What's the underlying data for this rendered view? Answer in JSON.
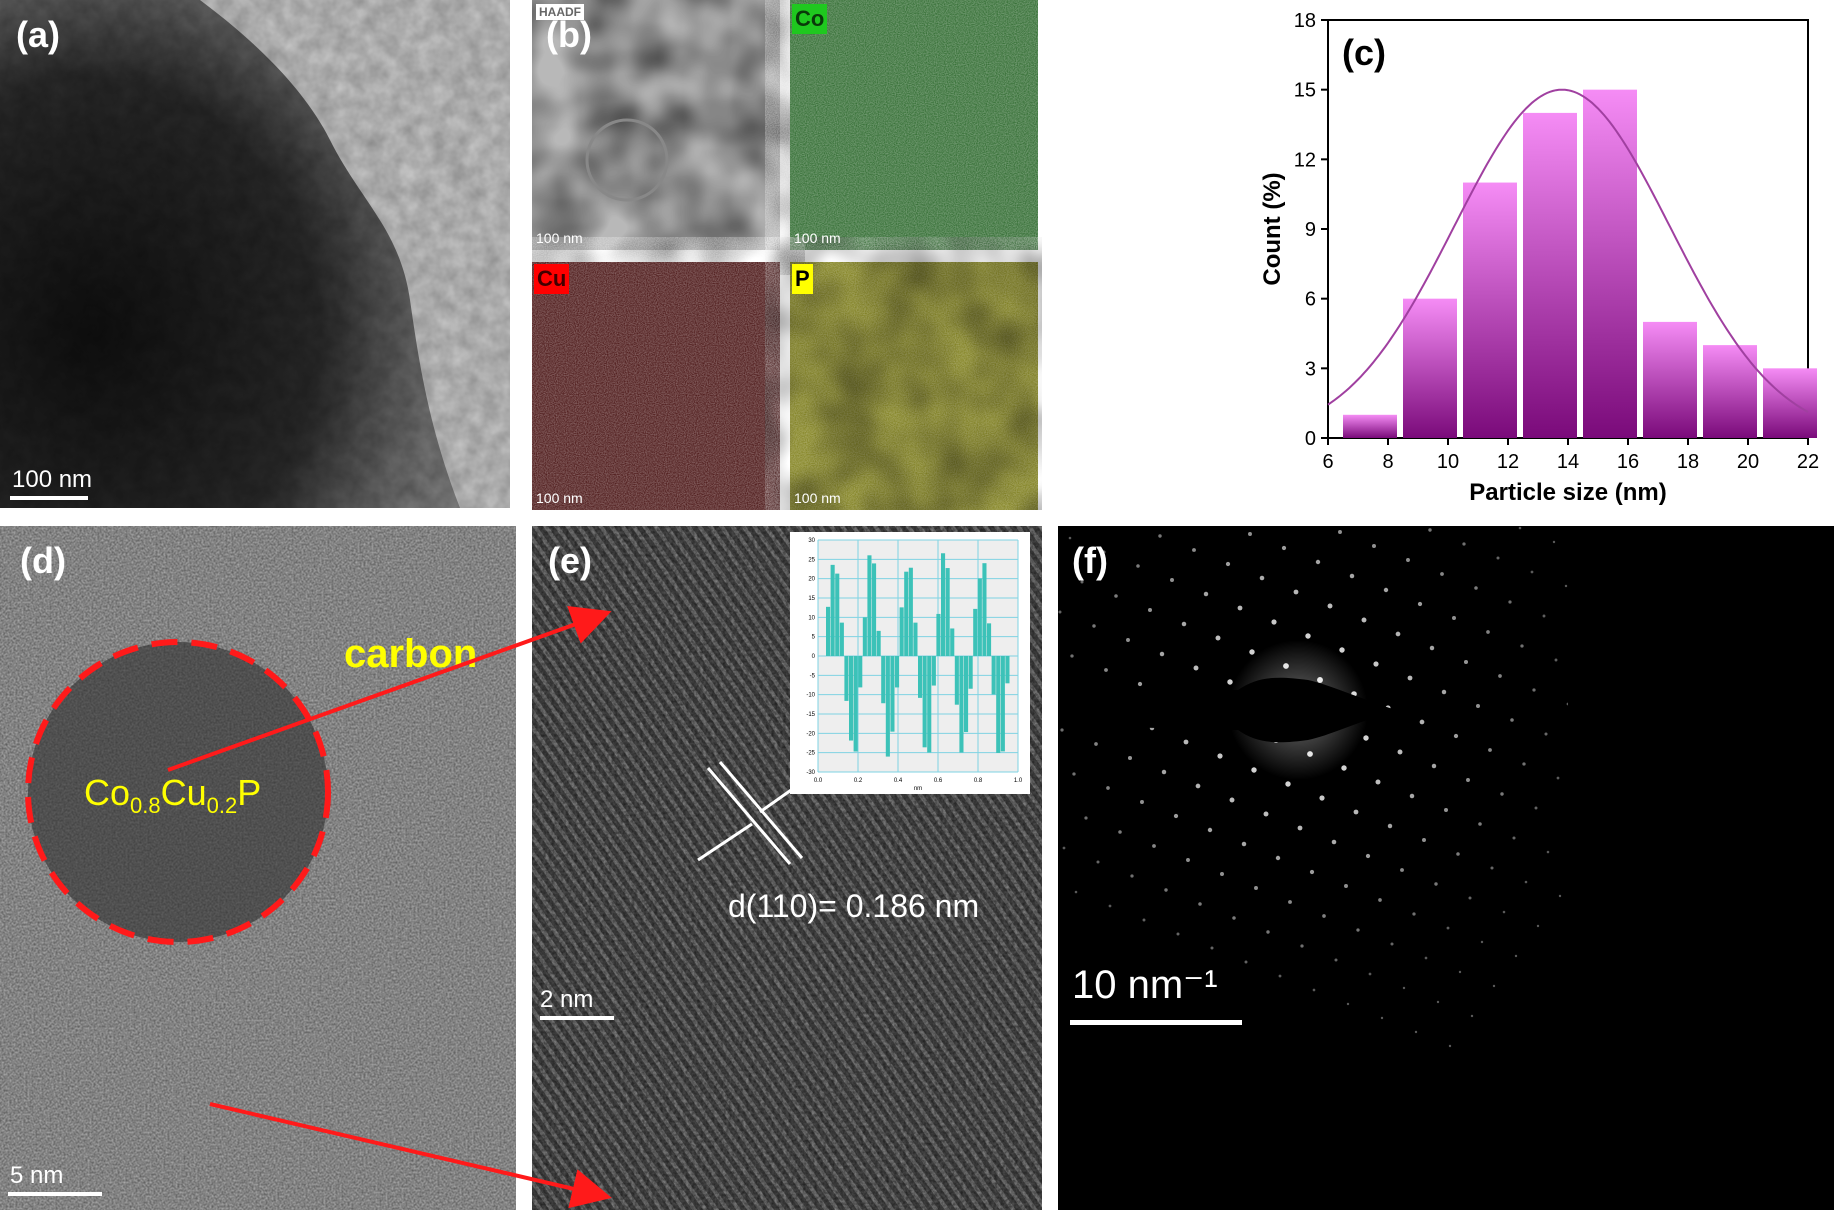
{
  "panels": {
    "a": {
      "label": "(a)",
      "scalebar": "100 nm"
    },
    "b": {
      "label": "(b)",
      "scalebar": "100 nm",
      "maps": [
        {
          "tag": "HAADF",
          "scalebar": "100 nm",
          "color": "#bdbdbd"
        },
        {
          "tag": "Co",
          "scalebar": "100 nm",
          "color": "#2ca02c"
        },
        {
          "tag": "Cu",
          "scalebar": "100 nm",
          "color": "#d40000"
        },
        {
          "tag": "P",
          "scalebar": "100 nm",
          "color": "#e6e600"
        }
      ]
    },
    "c": {
      "label": "(c)"
    },
    "d": {
      "label": "(d)",
      "scalebar": "5 nm",
      "annotation_carbon": "carbon",
      "formula": {
        "co": "Co",
        "co_sub": "0.8",
        "cu": "Cu",
        "cu_sub": "0.2",
        "p": "P"
      }
    },
    "e": {
      "label": "(e)",
      "scalebar": "2 nm",
      "spacing_label": "d(110)= 0.186 nm",
      "inset": {
        "yticks": [
          "30",
          "25",
          "20",
          "15",
          "10",
          "5",
          "0",
          "-5",
          "-10",
          "-15",
          "-20",
          "-25",
          "-30"
        ],
        "xticks": [
          "0.0",
          "0.2",
          "0.4",
          "0.6",
          "0.8",
          "1.0"
        ],
        "xunit": "nm",
        "bar_color": "#3cc2b8",
        "grid_color": "#7fd3e3"
      }
    },
    "f": {
      "label": "(f)",
      "scalebar": "10 nm⁻¹"
    }
  },
  "chart_data": {
    "type": "bar",
    "bins_left": [
      6.5,
      8.5,
      10.5,
      12.5,
      14.5,
      16.5,
      18.5,
      20.5
    ],
    "bin_width": 1.8,
    "values": [
      1,
      6,
      11,
      14,
      15,
      5,
      4,
      3
    ],
    "fit": {
      "type": "gaussian",
      "mean": 13.8,
      "sigma": 3.6,
      "peak": 15,
      "color": "#a040a0"
    },
    "bar_color_top": "#f58cf5",
    "bar_color_bottom": "#7a0a7a",
    "xlabel": "Particle size (nm)",
    "ylabel": "Count (%)",
    "xlim": [
      6,
      22
    ],
    "ylim": [
      0,
      18
    ],
    "xticks": [
      6,
      8,
      10,
      12,
      14,
      16,
      18,
      20,
      22
    ],
    "yticks": [
      0,
      3,
      6,
      9,
      12,
      15,
      18
    ],
    "grid": false,
    "legend": "none"
  }
}
